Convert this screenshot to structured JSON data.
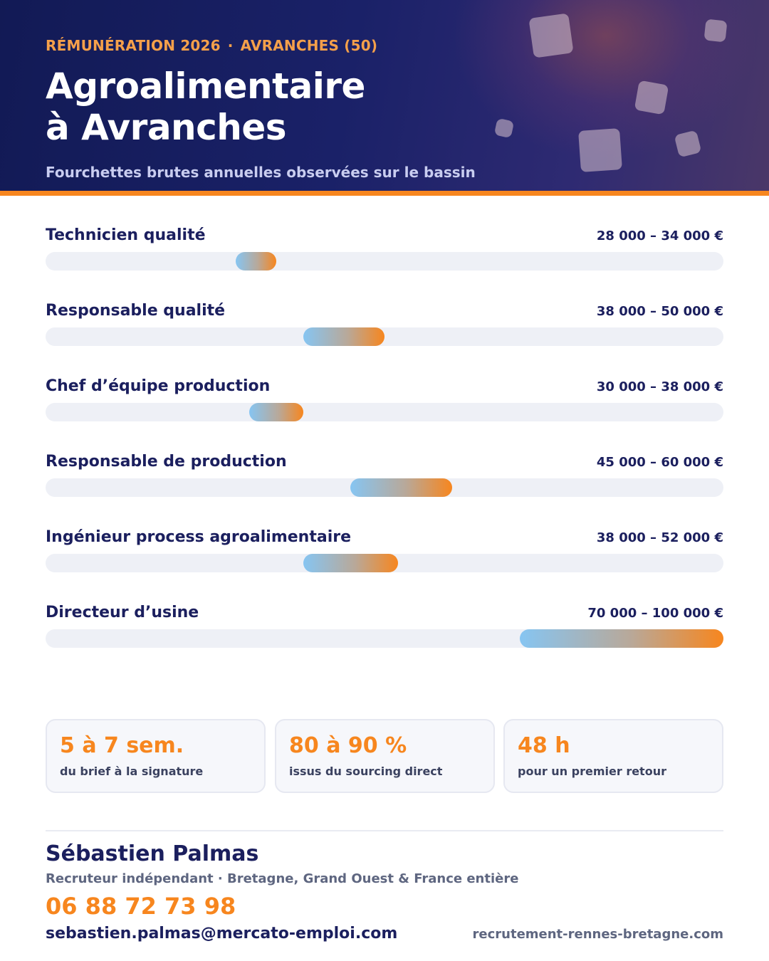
{
  "header": {
    "kicker_left": "RÉMUNÉRATION 2026",
    "kicker_sep": "·",
    "kicker_right": "AVRANCHES (50)",
    "title_line1": "Agroalimentaire",
    "title_line2": "à Avranches",
    "subtitle": "Fourchettes brutes annuelles observées sur le bassin"
  },
  "chart_data": {
    "type": "bar",
    "orientation": "horizontal-range",
    "categories": [
      "Technicien qualité",
      "Responsable qualité",
      "Chef d’équipe production",
      "Responsable de production",
      "Ingénieur process agroalimentaire",
      "Directeur d’usine"
    ],
    "ranges": [
      {
        "min": 28000,
        "max": 34000,
        "label": "28 000 – 34 000 €"
      },
      {
        "min": 38000,
        "max": 50000,
        "label": "38 000 – 50 000 €"
      },
      {
        "min": 30000,
        "max": 38000,
        "label": "30 000 – 38 000 €"
      },
      {
        "min": 45000,
        "max": 60000,
        "label": "45 000 – 60 000 €"
      },
      {
        "min": 38000,
        "max": 52000,
        "label": "38 000 – 52 000 €"
      },
      {
        "min": 70000,
        "max": 100000,
        "label": "70 000 – 100 000 €"
      }
    ],
    "xlim": [
      0,
      100000
    ],
    "title": "",
    "xlabel": "",
    "ylabel": "",
    "grid": false,
    "colors": {
      "start": "#86c5f2",
      "end": "#f7861e",
      "track": "#eef0f6"
    }
  },
  "stats": [
    {
      "value": "5 à 7 sem.",
      "label": "du brief à la signature"
    },
    {
      "value": "80 à 90 %",
      "label": "issus du sourcing direct"
    },
    {
      "value": "48 h",
      "label": "pour un premier retour"
    }
  ],
  "contact": {
    "name": "Sébastien Palmas",
    "role": "Recruteur indépendant · Bretagne, Grand Ouest & France entière",
    "phone": "06 88 72 73 98",
    "email": "sebastien.palmas@mercato-emploi.com",
    "website": "recrutement-rennes-bretagne.com"
  },
  "colors": {
    "navy": "#1b1f5e",
    "orange": "#f7861e",
    "header_bg": "#121a55"
  }
}
